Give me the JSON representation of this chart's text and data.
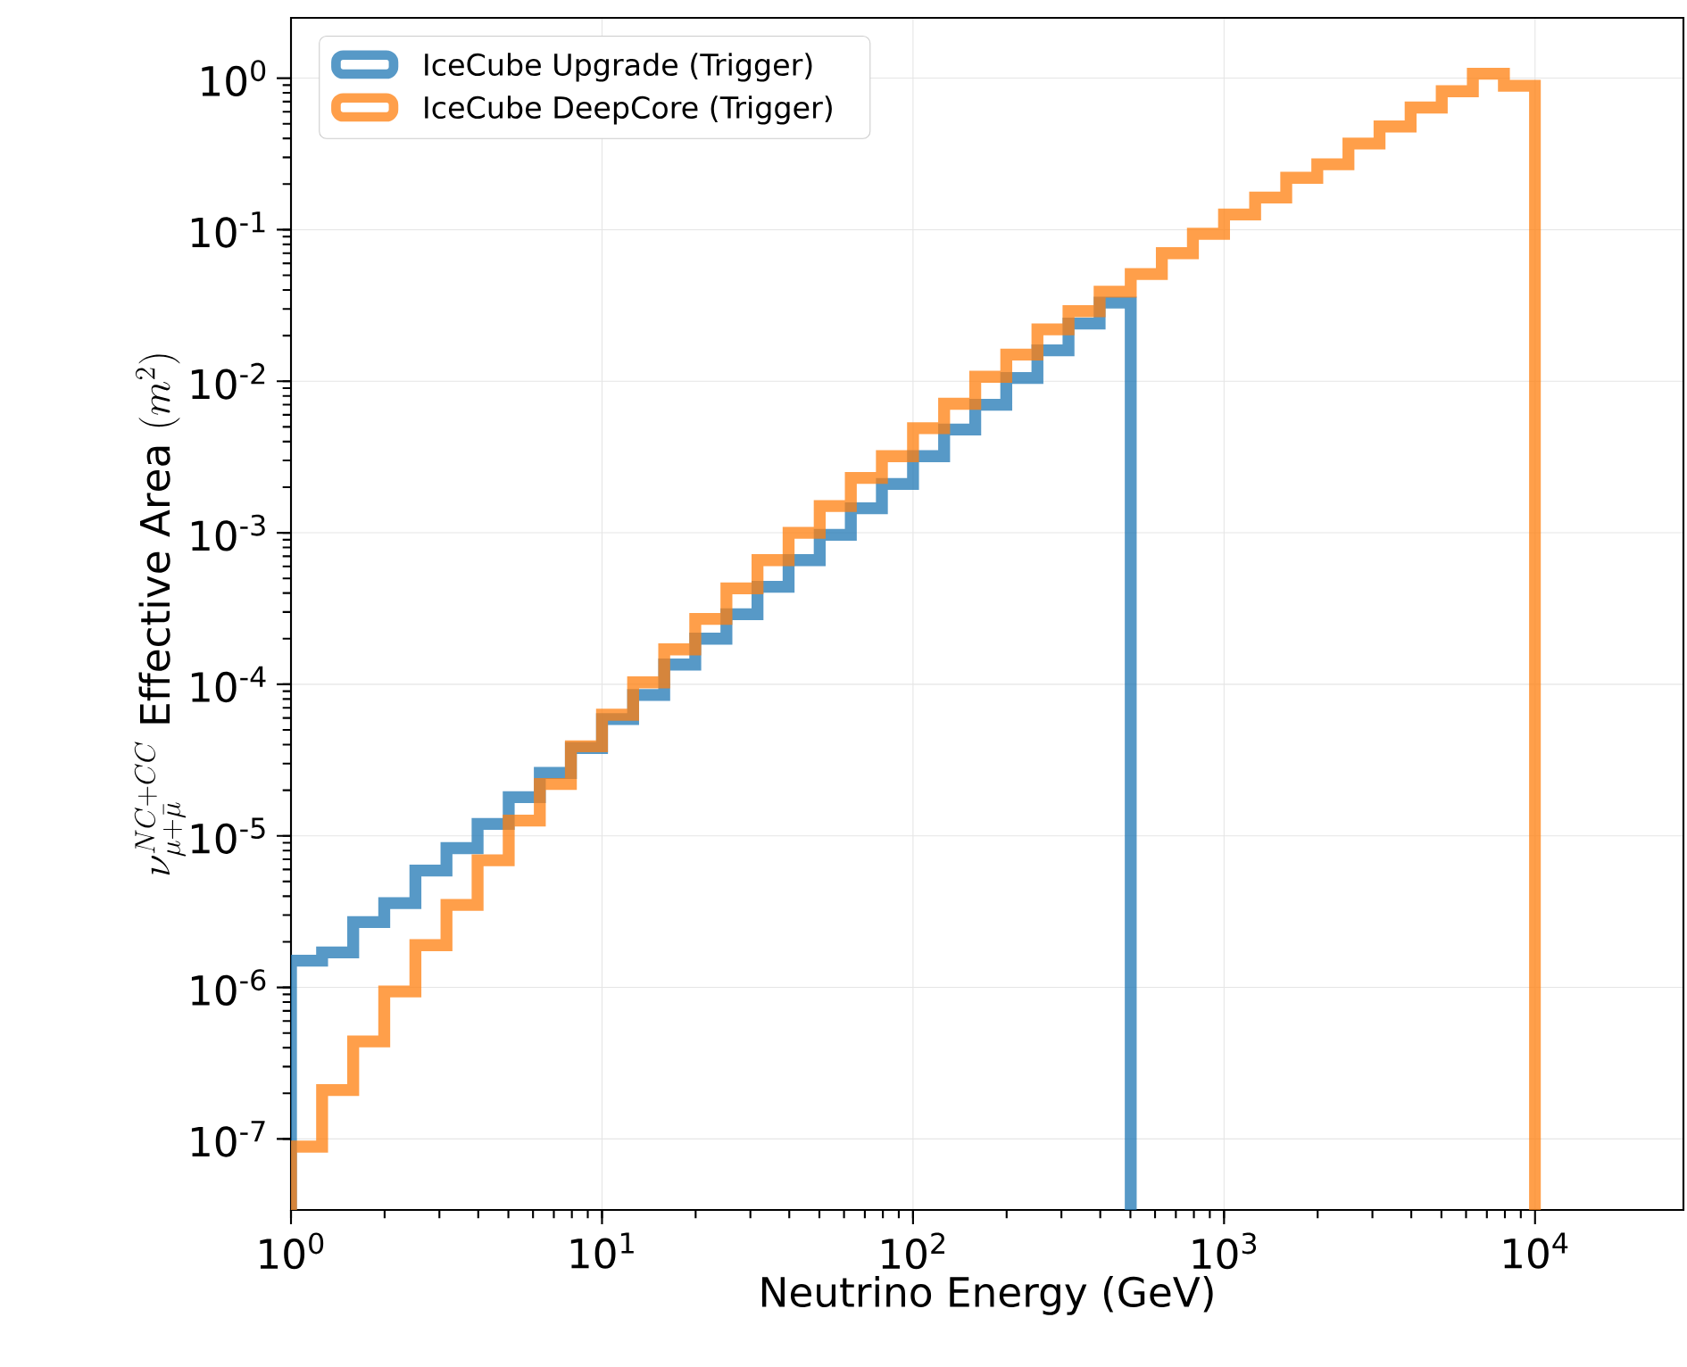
{
  "chart_data": {
    "type": "histogram",
    "xlabel": "Neutrino Energy (GeV)",
    "ylabel": "\\nu_{\\mu+\\bar{\\mu}}^{NC+CC}\\ \\mathrm{Effective\\ Area}\\ (m^2)",
    "xlim": [
      1,
      30000
    ],
    "ylim": [
      3.4e-08,
      2.5
    ],
    "log": "xy",
    "grid": true,
    "legend": "top left",
    "line_style": "solid",
    "xticks": [
      {
        "value": 1,
        "label": "10$^{0}$"
      },
      {
        "value": 10,
        "label": "10$^{1}$"
      },
      {
        "value": 100,
        "label": "10$^{2}$"
      },
      {
        "value": 1000,
        "label": "10$^{3}$"
      },
      {
        "value": 10000,
        "label": "10$^{4}$"
      }
    ],
    "yticks": [
      {
        "value": 1e-07,
        "label": "10$^{-7}$"
      },
      {
        "value": 1e-06,
        "label": "10$^{-6}$"
      },
      {
        "value": 1e-05,
        "label": "10$^{-5}$"
      },
      {
        "value": 0.0001,
        "label": "10$^{-4}$"
      },
      {
        "value": 0.001,
        "label": "10$^{-3}$"
      },
      {
        "value": 0.01,
        "label": "10$^{-2}$"
      },
      {
        "value": 0.1,
        "label": "10$^{-1}$"
      },
      {
        "value": 1,
        "label": "10$^{0}$"
      }
    ],
    "bins": [
      1,
      1.259,
      1.585,
      1.995,
      2.512,
      3.162,
      3.981,
      5.012,
      6.31,
      7.943,
      10,
      12.59,
      15.85,
      19.95,
      25.12,
      31.62,
      39.81,
      50.12,
      63.1,
      79.43,
      100,
      125.9,
      158.5,
      199.5,
      251.2,
      316.2,
      398.1,
      501.2,
      631,
      794.3,
      1000,
      1259,
      1585,
      1995,
      2512,
      3162,
      3981,
      5012,
      6310,
      7943,
      10000
    ],
    "series": [
      {
        "name": "IceCube Upgrade (Trigger)",
        "color": "#1f77b4",
        "bins": [
          1,
          1.259,
          1.585,
          1.995,
          2.512,
          3.162,
          3.981,
          5.012,
          6.31,
          7.943,
          10,
          12.59,
          15.85,
          19.95,
          25.12,
          31.62,
          39.81,
          50.12,
          63.1,
          79.43,
          100,
          125.9,
          158.5,
          199.5,
          251.2,
          316.2,
          398.1,
          501.2
        ],
        "values": [
          1.5e-06,
          1.7e-06,
          2.7e-06,
          3.6e-06,
          5.9e-06,
          8.3e-06,
          1.2e-05,
          1.8e-05,
          2.6e-05,
          3.8e-05,
          5.9e-05,
          8.5e-05,
          0.000135,
          0.0002,
          0.00029,
          0.00044,
          0.00066,
          0.00097,
          0.00145,
          0.0021,
          0.0032,
          0.0048,
          0.007,
          0.0105,
          0.016,
          0.024,
          0.033
        ]
      },
      {
        "name": "IceCube DeepCore (Trigger)",
        "color": "#ff7f0e",
        "values": [
          8.9e-08,
          2.1e-07,
          4.4e-07,
          9.4e-07,
          1.9e-06,
          3.5e-06,
          6.9e-06,
          1.26e-05,
          2.2e-05,
          3.9e-05,
          6.3e-05,
          0.000103,
          0.00017,
          0.00027,
          0.00043,
          0.00066,
          0.001,
          0.0015,
          0.0023,
          0.0032,
          0.0049,
          0.0071,
          0.0107,
          0.015,
          0.022,
          0.029,
          0.039,
          0.051,
          0.07,
          0.094,
          0.126,
          0.163,
          0.22,
          0.27,
          0.37,
          0.48,
          0.64,
          0.82,
          1.07,
          0.89
        ]
      }
    ]
  }
}
